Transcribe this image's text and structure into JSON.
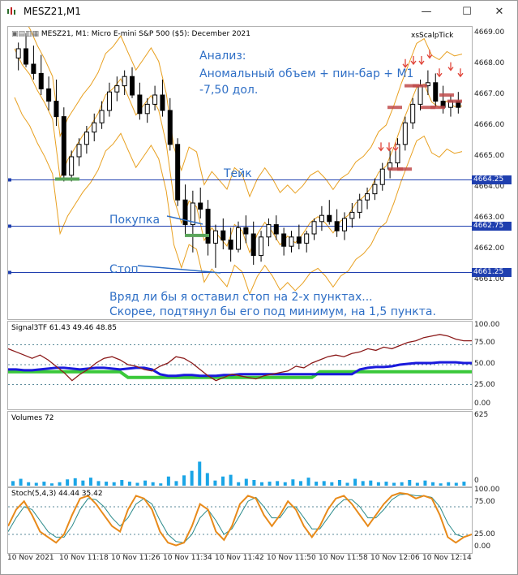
{
  "window": {
    "title": "MESZ21,M1",
    "buttons": {
      "minimize": "—",
      "maximize": "☐",
      "close": "✕"
    }
  },
  "main": {
    "header": "MESZ21, M1:  Micro E-mini S&P 500 ($5): December 2021",
    "indicator_name": "xsScalpTick",
    "price_scale": [
      "4669.00",
      "4668.00",
      "4667.00",
      "4666.00",
      "4665.00",
      "4664.00",
      "4663.00",
      "4662.00",
      "4661.00"
    ],
    "levels": [
      {
        "name": "take",
        "value": "4664.25",
        "color": "#1f3faf"
      },
      {
        "name": "buy",
        "value": "4662.75",
        "color": "#1f3faf"
      },
      {
        "name": "stop",
        "value": "4661.25",
        "color": "#1f3faf"
      }
    ],
    "annotations": {
      "analysis_title": "Анализ:",
      "analysis_line1": "Аномальный объем + пин-бар + М1",
      "analysis_line2": "-7,50 дол.",
      "take": "Тейк",
      "buy": "Покупка",
      "stop": "Стоп",
      "comment_line1": "Вряд ли бы я оставил стоп на 2-х пунктах...",
      "comment_line2": "Скорее, подтянул бы его под минимум, на 1,5 пункта."
    }
  },
  "signal": {
    "header": "Signal3TF 61.43 49.46 48.85",
    "scale": [
      "100.00",
      "75.00",
      "50.00",
      "25.00",
      "0.00"
    ]
  },
  "volumes": {
    "header": "Volumes 72",
    "scale": [
      "625",
      "0"
    ]
  },
  "stoch": {
    "header": "Stoch(5,4,3) 44.44 35.42",
    "scale": [
      "100.00",
      "75.00",
      "25.00",
      "0.00"
    ]
  },
  "time_axis": [
    "10 Nov 2021",
    "10 Nov 11:18",
    "10 Nov 11:26",
    "10 Nov 11:34",
    "10 Nov 11:42",
    "10 Nov 11:50",
    "10 Nov 11:58",
    "10 Nov 12:06",
    "10 Nov 12:14"
  ],
  "colors": {
    "up": "#000000",
    "down": "#000000",
    "bollinger": "#e8a020",
    "levels": "#1f3faf",
    "annotation": "#2f6fc6",
    "signal_red": "#8b1a1a",
    "signal_blue": "#1a1adc",
    "signal_green": "#3ac83a",
    "volume": "#1aa5e6",
    "stoch_main": "#e88a1a",
    "stoch_signal": "#2a8a8a"
  }
}
